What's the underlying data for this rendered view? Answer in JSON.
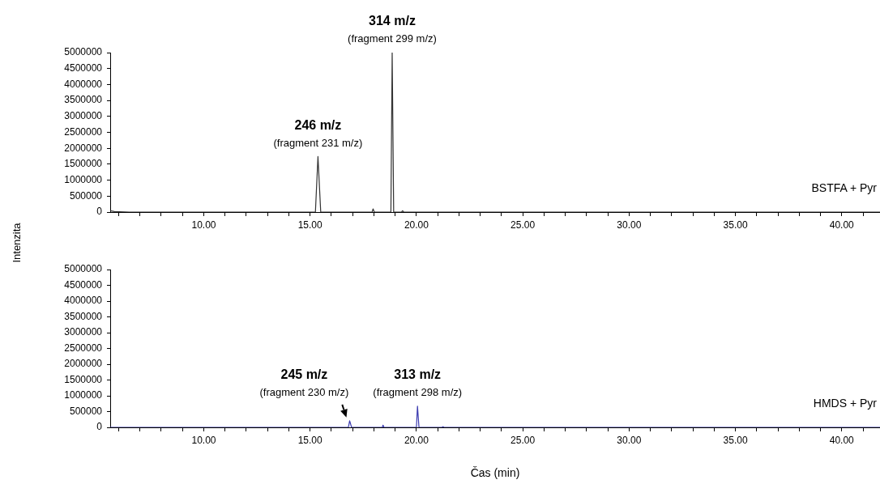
{
  "chart_data": [
    {
      "type": "line",
      "ylabel": "Intenzita",
      "xlim": [
        5.6,
        41.8
      ],
      "ylim": [
        0,
        5000000
      ],
      "xticks": [
        {
          "value": 6,
          "label": null
        },
        {
          "value": 7,
          "label": null
        },
        {
          "value": 8,
          "label": null
        },
        {
          "value": 9,
          "label": null
        },
        {
          "value": 10,
          "label": "10.00"
        },
        {
          "value": 11,
          "label": null
        },
        {
          "value": 12,
          "label": null
        },
        {
          "value": 13,
          "label": null
        },
        {
          "value": 14,
          "label": null
        },
        {
          "value": 15,
          "label": "15.00"
        },
        {
          "value": 16,
          "label": null
        },
        {
          "value": 17,
          "label": null
        },
        {
          "value": 18,
          "label": null
        },
        {
          "value": 19,
          "label": null
        },
        {
          "value": 20,
          "label": "20.00"
        },
        {
          "value": 21,
          "label": null
        },
        {
          "value": 22,
          "label": null
        },
        {
          "value": 23,
          "label": null
        },
        {
          "value": 24,
          "label": null
        },
        {
          "value": 25,
          "label": "25.00"
        },
        {
          "value": 26,
          "label": null
        },
        {
          "value": 27,
          "label": null
        },
        {
          "value": 28,
          "label": null
        },
        {
          "value": 29,
          "label": null
        },
        {
          "value": 30,
          "label": "30.00"
        },
        {
          "value": 31,
          "label": null
        },
        {
          "value": 32,
          "label": null
        },
        {
          "value": 33,
          "label": null
        },
        {
          "value": 34,
          "label": null
        },
        {
          "value": 35,
          "label": "35.00"
        },
        {
          "value": 36,
          "label": null
        },
        {
          "value": 37,
          "label": null
        },
        {
          "value": 38,
          "label": null
        },
        {
          "value": 39,
          "label": null
        },
        {
          "value": 40,
          "label": "40.00"
        },
        {
          "value": 41,
          "label": null
        }
      ],
      "yticks": [
        0,
        500000,
        1000000,
        1500000,
        2000000,
        2500000,
        3000000,
        3500000,
        4000000,
        4500000,
        5000000
      ],
      "series": [
        {
          "name": "BSTFA + Pyr",
          "color": "#333333",
          "x": [
            5.6,
            5.8,
            6.5,
            15.25,
            15.37,
            15.5,
            17.92,
            17.96,
            18.02,
            18.8,
            18.86,
            18.93,
            19.3,
            19.35,
            19.4,
            41.8
          ],
          "values": [
            40000,
            15000,
            0,
            0,
            1740000,
            0,
            0,
            100000,
            0,
            0,
            5000000,
            0,
            0,
            40000,
            0,
            0
          ]
        }
      ],
      "annotations": [
        {
          "text": "246 m/z\n(fragment 231 m/z)",
          "x": 15.37,
          "y": 1740000
        },
        {
          "text": "314 m/z\n(fragment 299 m/z)",
          "x": 18.86,
          "y": 5000000
        }
      ]
    },
    {
      "type": "line",
      "xlabel": "Čas (min)",
      "xlim": [
        5.6,
        41.8
      ],
      "ylim": [
        0,
        5000000
      ],
      "xticks": [
        {
          "value": 6,
          "label": null
        },
        {
          "value": 7,
          "label": null
        },
        {
          "value": 8,
          "label": null
        },
        {
          "value": 9,
          "label": null
        },
        {
          "value": 10,
          "label": "10.00"
        },
        {
          "value": 11,
          "label": null
        },
        {
          "value": 12,
          "label": null
        },
        {
          "value": 13,
          "label": null
        },
        {
          "value": 14,
          "label": null
        },
        {
          "value": 15,
          "label": "15.00"
        },
        {
          "value": 16,
          "label": null
        },
        {
          "value": 17,
          "label": null
        },
        {
          "value": 18,
          "label": null
        },
        {
          "value": 19,
          "label": null
        },
        {
          "value": 20,
          "label": "20.00"
        },
        {
          "value": 21,
          "label": null
        },
        {
          "value": 22,
          "label": null
        },
        {
          "value": 23,
          "label": null
        },
        {
          "value": 24,
          "label": null
        },
        {
          "value": 25,
          "label": "25.00"
        },
        {
          "value": 26,
          "label": null
        },
        {
          "value": 27,
          "label": null
        },
        {
          "value": 28,
          "label": null
        },
        {
          "value": 29,
          "label": null
        },
        {
          "value": 30,
          "label": "30.00"
        },
        {
          "value": 31,
          "label": null
        },
        {
          "value": 32,
          "label": null
        },
        {
          "value": 33,
          "label": null
        },
        {
          "value": 34,
          "label": null
        },
        {
          "value": 35,
          "label": "35.00"
        },
        {
          "value": 36,
          "label": null
        },
        {
          "value": 37,
          "label": null
        },
        {
          "value": 38,
          "label": null
        },
        {
          "value": 39,
          "label": null
        },
        {
          "value": 40,
          "label": "40.00"
        },
        {
          "value": 41,
          "label": null
        }
      ],
      "yticks": [
        0,
        500000,
        1000000,
        1500000,
        2000000,
        2500000,
        3000000,
        3500000,
        4000000,
        4500000,
        5000000
      ],
      "series": [
        {
          "name": "HMDS + Pyr",
          "color": "#3b3bb0",
          "x": [
            5.6,
            16.8,
            16.86,
            16.95,
            18.4,
            18.43,
            18.47,
            20.0,
            20.05,
            20.12,
            21.2,
            21.25,
            21.3,
            41.8
          ],
          "values": [
            0,
            0,
            210000,
            0,
            0,
            70000,
            0,
            0,
            670000,
            0,
            0,
            20000,
            0,
            0
          ]
        }
      ],
      "annotations": [
        {
          "text": "245 m/z\n(fragment 230 m/z)",
          "x": 16.86,
          "y": 210000
        },
        {
          "text": "313 m/z\n(fragment 298 m/z)",
          "x": 20.05,
          "y": 670000
        }
      ]
    }
  ]
}
